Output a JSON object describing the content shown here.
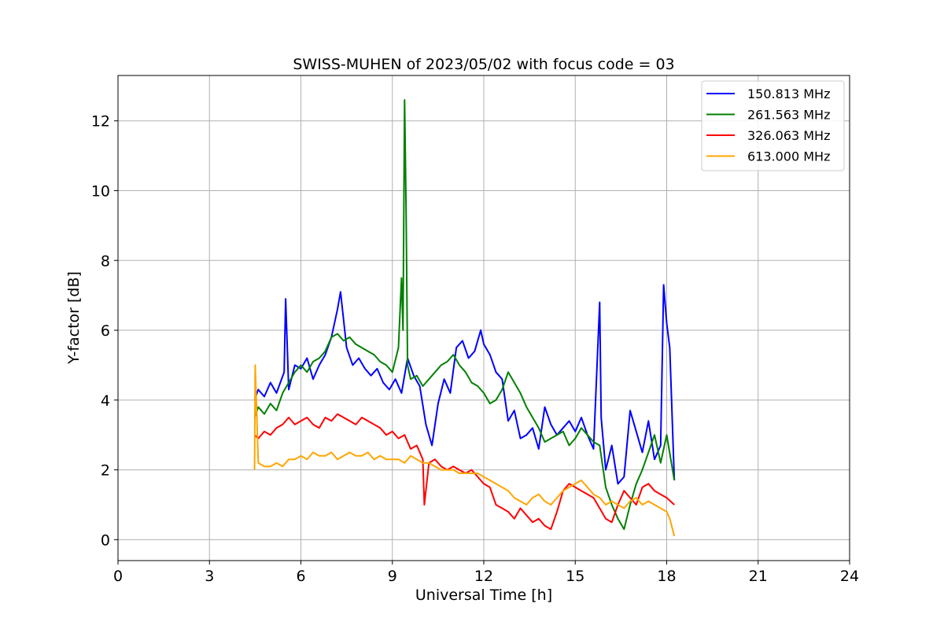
{
  "chart_data": {
    "type": "line",
    "title": "SWISS-MUHEN of 2023/05/02 with focus code = 03",
    "xlabel": "Universal Time [h]",
    "ylabel": "Y-factor [dB]",
    "xlim": [
      0,
      24
    ],
    "ylim": [
      -0.6,
      13.3
    ],
    "xticks": [
      0,
      3,
      6,
      9,
      12,
      15,
      18,
      21,
      24
    ],
    "yticks": [
      0,
      2,
      4,
      6,
      8,
      10,
      12
    ],
    "grid": true,
    "legend_position": "top-right",
    "series": [
      {
        "name": "150.813 MHz",
        "color": "#0000ff",
        "x": [
          4.48,
          4.6,
          4.8,
          5.0,
          5.2,
          5.45,
          5.5,
          5.6,
          5.8,
          6.0,
          6.2,
          6.4,
          6.6,
          6.8,
          7.0,
          7.2,
          7.3,
          7.5,
          7.7,
          7.9,
          8.1,
          8.3,
          8.5,
          8.7,
          8.9,
          9.1,
          9.3,
          9.5,
          9.7,
          9.9,
          10.1,
          10.3,
          10.5,
          10.7,
          10.9,
          11.1,
          11.3,
          11.5,
          11.7,
          11.9,
          12.0,
          12.2,
          12.4,
          12.6,
          12.8,
          13.0,
          13.2,
          13.4,
          13.6,
          13.8,
          14.0,
          14.2,
          14.4,
          14.6,
          14.8,
          15.0,
          15.2,
          15.4,
          15.6,
          15.8,
          15.85,
          16.0,
          16.2,
          16.4,
          16.6,
          16.8,
          17.0,
          17.2,
          17.4,
          17.6,
          17.8,
          17.9,
          18.0,
          18.1,
          18.25
        ],
        "y": [
          4.0,
          4.3,
          4.1,
          4.5,
          4.2,
          4.8,
          6.9,
          4.3,
          5.0,
          4.9,
          5.2,
          4.6,
          5.0,
          5.3,
          5.8,
          6.6,
          7.1,
          5.5,
          5.0,
          5.2,
          4.9,
          4.7,
          4.9,
          4.5,
          4.3,
          4.6,
          4.2,
          5.2,
          4.7,
          4.4,
          3.3,
          2.7,
          3.9,
          4.6,
          4.2,
          5.5,
          5.7,
          5.2,
          5.4,
          6.0,
          5.6,
          5.3,
          4.8,
          4.6,
          3.4,
          3.7,
          2.9,
          3.0,
          3.2,
          2.6,
          3.8,
          3.3,
          3.0,
          3.2,
          3.4,
          3.1,
          3.5,
          3.0,
          2.6,
          6.8,
          3.5,
          2.0,
          2.7,
          1.6,
          1.8,
          3.7,
          3.1,
          2.5,
          3.4,
          2.3,
          2.7,
          7.3,
          6.2,
          5.5,
          1.7
        ]
      },
      {
        "name": "261.563 MHz",
        "color": "#008000",
        "x": [
          4.48,
          4.6,
          4.8,
          5.0,
          5.2,
          5.4,
          5.6,
          5.8,
          6.0,
          6.2,
          6.4,
          6.6,
          6.8,
          7.0,
          7.2,
          7.4,
          7.6,
          7.8,
          8.0,
          8.2,
          8.4,
          8.6,
          8.8,
          9.0,
          9.2,
          9.3,
          9.35,
          9.4,
          9.45,
          9.5,
          9.6,
          9.8,
          10.0,
          10.2,
          10.4,
          10.6,
          10.8,
          11.0,
          11.2,
          11.4,
          11.6,
          11.8,
          12.0,
          12.2,
          12.4,
          12.6,
          12.8,
          13.0,
          13.2,
          13.4,
          13.6,
          13.8,
          14.0,
          14.2,
          14.4,
          14.6,
          14.8,
          15.0,
          15.2,
          15.4,
          15.6,
          15.8,
          16.0,
          16.2,
          16.4,
          16.6,
          16.8,
          17.0,
          17.2,
          17.4,
          17.6,
          17.8,
          18.0,
          18.25
        ],
        "y": [
          3.5,
          3.8,
          3.6,
          3.9,
          3.7,
          4.2,
          4.5,
          4.8,
          5.0,
          4.8,
          5.1,
          5.2,
          5.4,
          5.8,
          5.9,
          5.7,
          5.8,
          5.6,
          5.5,
          5.4,
          5.3,
          5.1,
          5.0,
          4.8,
          5.5,
          7.5,
          6.0,
          12.6,
          9.5,
          5.0,
          4.6,
          4.7,
          4.4,
          4.6,
          4.8,
          5.0,
          5.1,
          5.3,
          5.0,
          4.8,
          4.5,
          4.4,
          4.2,
          3.9,
          4.0,
          4.3,
          4.8,
          4.5,
          4.2,
          3.8,
          3.5,
          3.2,
          2.8,
          2.9,
          3.0,
          3.1,
          2.7,
          2.9,
          3.2,
          3.0,
          2.8,
          2.7,
          1.5,
          1.0,
          0.6,
          0.3,
          1.0,
          1.6,
          2.0,
          2.5,
          3.0,
          2.2,
          3.0,
          1.7
        ]
      },
      {
        "name": "326.063 MHz",
        "color": "#ff0000",
        "x": [
          4.48,
          4.6,
          4.8,
          5.0,
          5.2,
          5.4,
          5.6,
          5.8,
          6.0,
          6.2,
          6.4,
          6.6,
          6.8,
          7.0,
          7.2,
          7.4,
          7.6,
          7.8,
          8.0,
          8.2,
          8.4,
          8.6,
          8.8,
          9.0,
          9.2,
          9.4,
          9.6,
          9.8,
          10.0,
          10.05,
          10.2,
          10.4,
          10.6,
          10.8,
          11.0,
          11.2,
          11.4,
          11.6,
          11.8,
          12.0,
          12.2,
          12.4,
          12.6,
          12.8,
          13.0,
          13.2,
          13.4,
          13.6,
          13.8,
          14.0,
          14.2,
          14.4,
          14.6,
          14.8,
          15.0,
          15.2,
          15.4,
          15.6,
          15.8,
          16.0,
          16.2,
          16.4,
          16.6,
          16.8,
          17.0,
          17.2,
          17.4,
          17.6,
          17.8,
          18.0,
          18.25
        ],
        "y": [
          3.0,
          2.9,
          3.1,
          3.0,
          3.2,
          3.3,
          3.5,
          3.3,
          3.4,
          3.5,
          3.3,
          3.2,
          3.5,
          3.4,
          3.6,
          3.5,
          3.4,
          3.3,
          3.5,
          3.4,
          3.3,
          3.2,
          3.0,
          3.1,
          2.9,
          3.0,
          2.6,
          2.7,
          2.3,
          1.0,
          2.2,
          2.3,
          2.1,
          2.0,
          2.1,
          2.0,
          1.9,
          2.0,
          1.8,
          1.6,
          1.5,
          1.0,
          0.9,
          0.8,
          0.6,
          0.9,
          0.7,
          0.5,
          0.6,
          0.4,
          0.3,
          0.8,
          1.4,
          1.6,
          1.5,
          1.4,
          1.3,
          1.2,
          0.9,
          0.6,
          0.5,
          1.0,
          1.4,
          1.2,
          1.0,
          1.5,
          1.6,
          1.4,
          1.3,
          1.2,
          1.0
        ]
      },
      {
        "name": "613.000 MHz",
        "color": "#ffa500",
        "x": [
          4.48,
          4.5,
          4.6,
          4.8,
          5.0,
          5.2,
          5.4,
          5.6,
          5.8,
          6.0,
          6.2,
          6.4,
          6.6,
          6.8,
          7.0,
          7.2,
          7.4,
          7.6,
          7.8,
          8.0,
          8.2,
          8.4,
          8.6,
          8.8,
          9.0,
          9.2,
          9.4,
          9.6,
          9.8,
          10.0,
          10.2,
          10.4,
          10.6,
          10.8,
          11.0,
          11.2,
          11.4,
          11.6,
          11.8,
          12.0,
          12.2,
          12.4,
          12.6,
          12.8,
          13.0,
          13.2,
          13.4,
          13.6,
          13.8,
          14.0,
          14.2,
          14.4,
          14.6,
          14.8,
          15.0,
          15.2,
          15.4,
          15.6,
          15.8,
          16.0,
          16.2,
          16.4,
          16.6,
          16.8,
          17.0,
          17.2,
          17.4,
          17.6,
          17.8,
          18.0,
          18.1,
          18.25
        ],
        "y": [
          2.0,
          5.0,
          2.2,
          2.1,
          2.1,
          2.2,
          2.1,
          2.3,
          2.3,
          2.4,
          2.3,
          2.5,
          2.4,
          2.4,
          2.5,
          2.3,
          2.4,
          2.5,
          2.4,
          2.4,
          2.5,
          2.3,
          2.4,
          2.3,
          2.3,
          2.3,
          2.2,
          2.4,
          2.3,
          2.2,
          2.2,
          2.1,
          2.0,
          2.0,
          2.0,
          1.9,
          1.9,
          1.9,
          1.9,
          1.8,
          1.7,
          1.6,
          1.5,
          1.4,
          1.2,
          1.1,
          1.0,
          1.2,
          1.3,
          1.1,
          1.0,
          1.2,
          1.4,
          1.5,
          1.6,
          1.7,
          1.5,
          1.3,
          1.2,
          1.0,
          1.1,
          1.0,
          0.9,
          1.1,
          1.2,
          1.0,
          1.1,
          1.0,
          0.9,
          0.8,
          0.6,
          0.1
        ]
      }
    ]
  }
}
